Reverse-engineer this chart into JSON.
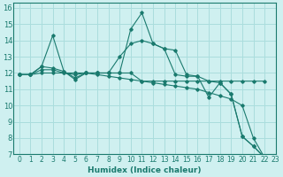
{
  "xlabel": "Humidex (Indice chaleur)",
  "xlim": [
    -0.5,
    23
  ],
  "ylim": [
    7,
    16.3
  ],
  "yticks": [
    7,
    8,
    9,
    10,
    11,
    12,
    13,
    14,
    15,
    16
  ],
  "xticks": [
    0,
    1,
    2,
    3,
    4,
    5,
    6,
    7,
    8,
    9,
    10,
    11,
    12,
    13,
    14,
    15,
    16,
    17,
    18,
    19,
    20,
    21,
    22,
    23
  ],
  "background_color": "#cff0f0",
  "grid_color": "#aadddd",
  "line_color": "#1a7a6e",
  "line1": [
    11.9,
    11.9,
    12.4,
    14.3,
    12.1,
    11.6,
    12.0,
    12.0,
    12.0,
    12.0,
    14.7,
    15.7,
    13.8,
    13.5,
    13.4,
    11.9,
    11.8,
    11.5,
    11.4,
    10.7,
    8.1,
    7.5,
    6.8
  ],
  "line2": [
    11.9,
    11.9,
    12.4,
    12.3,
    12.1,
    11.7,
    12.0,
    12.0,
    12.0,
    13.0,
    13.8,
    14.0,
    13.8,
    13.5,
    11.9,
    11.8,
    11.8,
    10.5,
    11.4,
    10.7,
    8.1,
    7.5,
    6.8
  ],
  "line3": [
    11.9,
    11.9,
    12.2,
    12.2,
    12.0,
    11.9,
    12.0,
    12.0,
    12.0,
    12.0,
    12.0,
    11.5,
    11.5,
    11.5,
    11.5,
    11.5,
    11.5,
    11.5,
    11.5,
    11.5,
    11.5,
    11.5,
    11.5
  ],
  "line4": [
    11.9,
    11.9,
    12.0,
    12.0,
    12.0,
    12.0,
    12.0,
    11.9,
    11.8,
    11.7,
    11.6,
    11.5,
    11.4,
    11.3,
    11.2,
    11.1,
    11.0,
    10.8,
    10.6,
    10.4,
    10.0,
    8.0,
    6.8
  ]
}
